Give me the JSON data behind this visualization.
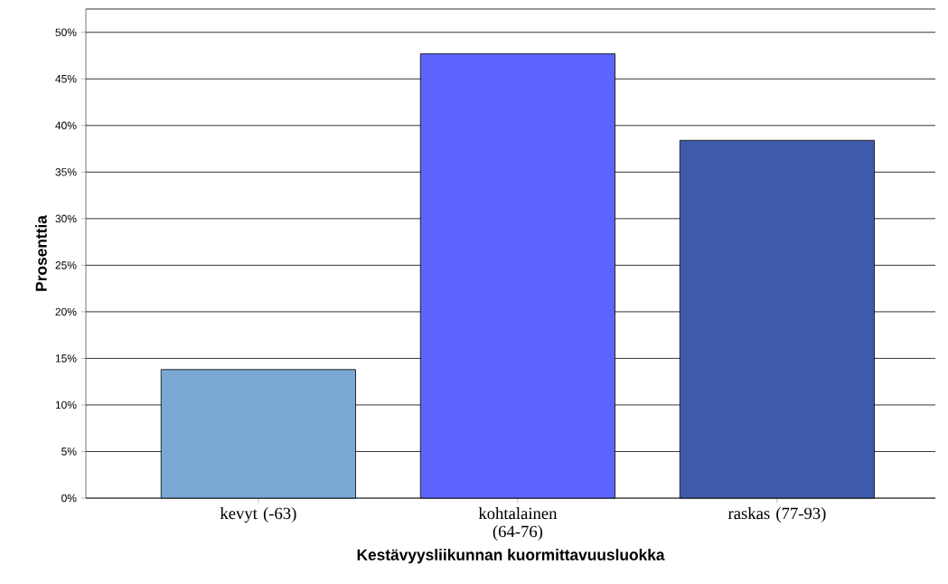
{
  "chart_data": {
    "type": "bar",
    "xlabel": "Kestävyysliikunnan kuormittavuusluokka",
    "ylabel": "Prosenttia",
    "categories": [
      "kevyt (-63)",
      "kohtalainen (64-76)",
      "raskas (77-93)"
    ],
    "values": [
      13.8,
      47.7,
      38.4
    ],
    "colors": [
      "#7ba7d4",
      "#5f63ff",
      "#3e5aaa"
    ],
    "ylim": [
      0,
      52.5
    ],
    "yticks": [
      {
        "value": 0,
        "label": "0%"
      },
      {
        "value": 5,
        "label": "5%"
      },
      {
        "value": 10,
        "label": "10%"
      },
      {
        "value": 15,
        "label": "15%"
      },
      {
        "value": 20,
        "label": "20%"
      },
      {
        "value": 25,
        "label": "25%"
      },
      {
        "value": 30,
        "label": "30%"
      },
      {
        "value": 35,
        "label": "35%"
      },
      {
        "value": 40,
        "label": "40%"
      },
      {
        "value": 45,
        "label": "45%"
      },
      {
        "value": 50,
        "label": "50%"
      }
    ],
    "grid": "y"
  }
}
